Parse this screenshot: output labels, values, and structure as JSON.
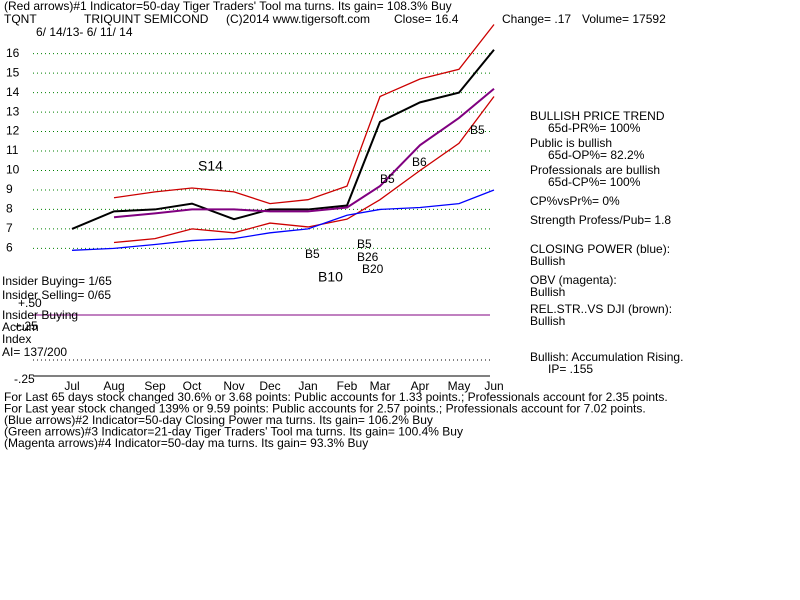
{
  "chart_data": {
    "type": "line",
    "header": [
      "(Red arrows)#1 Indicator=50-day Tiger Traders' Tool ma turns. Its gain= 108.3% Buy",
      "TQNT",
      "TRIQUINT SEMICOND",
      "(C)2014 www.tigersoft.com",
      "Close= 16.4",
      "Change= .17",
      "Volume= 17592"
    ],
    "subtitle": "6/ 14/13- 6/ 11/ 14",
    "categories": [
      "Jul",
      "Aug",
      "Sep",
      "Oct",
      "Nov",
      "Dec",
      "Jan",
      "Feb",
      "Mar",
      "Apr",
      "May",
      "Jun"
    ],
    "series": [
      {
        "color": "#000000",
        "values": [
          7.0,
          7.9,
          8.0,
          8.3,
          7.5,
          8.0,
          8.0,
          8.2,
          12.5,
          13.5,
          14.0,
          16.2
        ]
      },
      {
        "color": "#cc0000",
        "values": [
          null,
          8.6,
          8.9,
          9.1,
          8.9,
          8.3,
          8.5,
          9.2,
          13.8,
          14.7,
          15.2,
          17.5
        ]
      },
      {
        "color": "#cc0000",
        "values": [
          null,
          6.3,
          6.5,
          7.0,
          6.8,
          7.3,
          7.1,
          7.5,
          8.5,
          10.0,
          11.4,
          13.8
        ]
      },
      {
        "color": "#800080",
        "values": [
          null,
          7.6,
          7.8,
          8.0,
          8.0,
          7.9,
          7.9,
          8.1,
          9.2,
          11.3,
          12.7,
          14.2
        ]
      },
      {
        "color": "#0000ff",
        "values": [
          5.9,
          6.0,
          6.2,
          6.4,
          6.5,
          6.8,
          7.0,
          7.7,
          8.0,
          8.1,
          8.3,
          9.0
        ]
      }
    ],
    "ylim": [
      5.3,
      16.6
    ],
    "yticks": [
      6,
      7,
      8,
      9,
      10,
      11,
      12,
      13,
      14,
      15,
      16
    ],
    "grid": true,
    "annotations": [
      "S14",
      "B5",
      "B6",
      "B5",
      "B5",
      "B10",
      "B5",
      "B26",
      "B20"
    ],
    "left_labels": [
      "Insider Buying= 1/65",
      "Insider Selling= 0/65",
      "+.50",
      "Insider Buying",
      "Accum",
      "+.25",
      "Index",
      "AI= 137/200",
      "-.25"
    ],
    "panel": [
      "BULLISH PRICE TREND",
      "65d-PR%= 100%",
      "Public is bullish",
      "65d-OP%= 82.2%",
      "Professionals are bullish",
      "65d-CP%= 100%",
      "CP%vsPr%=  0%",
      "Strength Profess/Pub= 1.8",
      "CLOSING POWER (blue):",
      "Bullish",
      "OBV (magenta):",
      "Bullish",
      "REL.STR..VS DJI (brown):",
      "Bullish",
      "Bullish: Accumulation Rising.",
      "IP=  .155"
    ],
    "footer": [
      "For Last 65 days stock changed  30.6% or  3.68 points:  Public accounts for  1.33 points.;  Professionals account for  2.35 points.",
      "For Last year stock changed  139% or  9.59 points:  Public accounts for  2.57 points.;  Professionals account for  7.02 points.",
      "(Blue arrows)#2 Indicator=50-day Closing Power ma turns. Its gain= 106.2% Buy",
      "(Green arrows)#3 Indicator=21-day Tiger Traders' Tool ma turns. Its gain= 100.4% Buy",
      "(Magenta arrows)#4 Indicator=50-day ma turns. Its gain= 93.3% Buy"
    ]
  }
}
